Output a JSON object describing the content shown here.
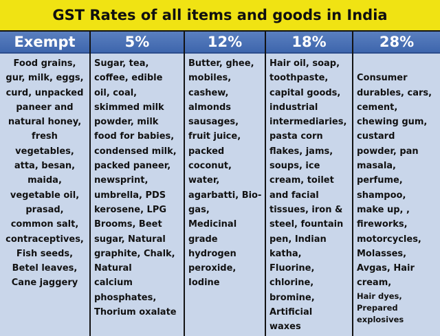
{
  "title": "GST Rates of all items and goods in India",
  "colors": {
    "title_bg": "#f0e313",
    "header_bg": "#4a70b5",
    "cell_bg": "#c9d6ea"
  },
  "columns": [
    {
      "header": "Exempt",
      "items": "Food grains,\ngur, milk, eggs,\ncurd, unpacked\npaneer and\nnatural honey,\nfresh\nvegetables,\natta, besan,\nmaida,\nvegetable oil,\nprasad,\ncommon salt,\ncontraceptives,\nFish seeds,\nBetel leaves,\nCane jaggery"
    },
    {
      "header": "5%",
      "items": "Sugar, tea,\ncoffee, edible\noil, coal,\nskimmed milk\npowder, milk\nfood for babies,\ncondensed milk,\npacked paneer,\nnewsprint,\numbrella, PDS\nkerosene, LPG\nBrooms, Beet\nsugar, Natural\ngraphite, Chalk,\nNatural\ncalcium\nphosphates,\nThorium oxalate"
    },
    {
      "header": "12%",
      "items": "Butter, ghee,\nmobiles,\ncashew,\nalmonds\nsausages,\nfruit juice,\npacked\ncoconut,\nwater,\nagarbatti, Bio-\ngas,\nMedicinal\ngrade\nhydrogen\nperoxide,\nIodine"
    },
    {
      "header": "18%",
      "items": "Hair oil, soap,\ntoothpaste,\ncapital goods,\nindustrial\nintermediaries,\npasta corn\nflakes, jams,\nsoups, ice\ncream, toilet\nand facial\ntissues, iron &\nsteel, fountain\npen, Indian\nkatha,\nFluorine,\nchlorine,\nbromine,\nArtificial\nwaxes"
    },
    {
      "header": "28%",
      "items": "Consumer\ndurables, cars,\ncement,\nchewing gum,\ncustard\npowder, pan\nmasala,\nperfume,\nshampoo,\nmake up, ,\nfireworks,\nmotorcycles,\nMolasses,\nAvgas, Hair\ncream,",
      "items_small": "Hair dyes,\nPrepared\nexplosives"
    }
  ]
}
